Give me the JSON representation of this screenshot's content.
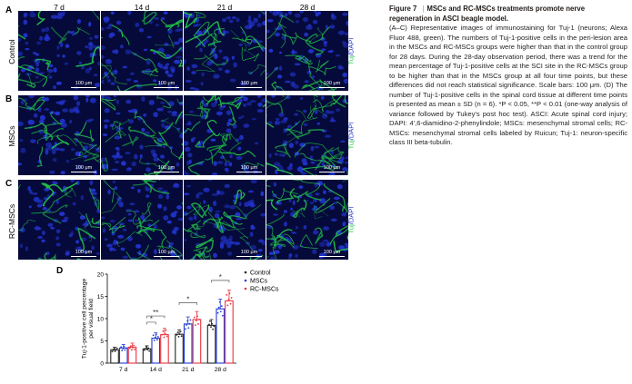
{
  "figure": {
    "panel_labels": [
      "A",
      "B",
      "C",
      "D"
    ],
    "time_points": [
      "7 d",
      "14 d",
      "21 d",
      "28 d"
    ],
    "rows": [
      "Control",
      "MSCs",
      "RC-MSCs"
    ],
    "scale_bar_text": "100 μm",
    "stain": {
      "tuj": "Tuj",
      "sep": "/",
      "dapi": "DAPI"
    },
    "colors": {
      "tuj": "#22c24a",
      "dapi": "#2233cc",
      "tissue_bg": "#050a3a"
    }
  },
  "caption": {
    "figure_number": "Figure 7",
    "separator": "|",
    "title": "MSCs and RC-MSCs treatments promote nerve regeneration in ASCI beagle model.",
    "body": "(A–C) Representative images of immunostaining for Tuj-1 (neurons; Alexa Fluor 488, green). The numbers of Tuj-1-positive cells in the peri-lesion area in the MSCs and RC-MSCs groups were higher than that in the control group for 28 days. During the 28-day observation period, there was a trend for the mean percentage of Tuj-1-positive cells at the SCI site in the RC-MSCs group to be higher than that in the MSCs group at all four time points, but these differences did not reach statistical significance. Scale bars: 100 μm. (D) The number of Tuj-1-positive cells in the spinal cord tissue at different time points is presented as mean ± SD (n = 6). *P < 0.05, **P < 0.01 (one-way analysis of variance followed by Tukey's post hoc test). ASCI: Acute spinal cord injury; DAPI: 4′,6-diamidino-2-phenylindole; MSCs: mesenchymal stromal cells; RC-MSCs: mesenchymal stromal cells labeled by Ruicun; Tuj-1: neuron-specific class III beta-tubulin."
  },
  "chart_data": {
    "type": "bar",
    "categories": [
      "7 d",
      "14 d",
      "21 d",
      "28 d"
    ],
    "ylabel": "Tuj-1-positive cell percentage per visual field",
    "ylim": [
      0,
      20
    ],
    "yticks": [
      0,
      5,
      10,
      15,
      20
    ],
    "series": [
      {
        "name": "Control",
        "color": "#222222",
        "values": [
          3.0,
          3.2,
          6.5,
          8.5
        ],
        "errors": [
          0.6,
          0.7,
          1.0,
          1.3
        ]
      },
      {
        "name": "MSCs",
        "color": "#1f3bd6",
        "values": [
          3.4,
          5.6,
          8.8,
          12.2
        ],
        "errors": [
          0.8,
          1.2,
          1.6,
          2.2
        ]
      },
      {
        "name": "RC-MSCs",
        "color": "#e8323c",
        "values": [
          3.6,
          6.4,
          9.8,
          14.0
        ],
        "errors": [
          0.9,
          1.4,
          1.8,
          2.4
        ]
      }
    ],
    "significance": [
      {
        "category": "14 d",
        "from": 0,
        "to": 1,
        "label": "*",
        "level": 9.2
      },
      {
        "category": "14 d",
        "from": 0,
        "to": 2,
        "label": "**",
        "level": 10.6
      },
      {
        "category": "21 d",
        "from": 0,
        "to": 2,
        "label": "*",
        "level": 13.6
      },
      {
        "category": "28 d",
        "from": 0,
        "to": 2,
        "label": "*",
        "level": 18.6
      }
    ],
    "legend_position": "top-right"
  }
}
